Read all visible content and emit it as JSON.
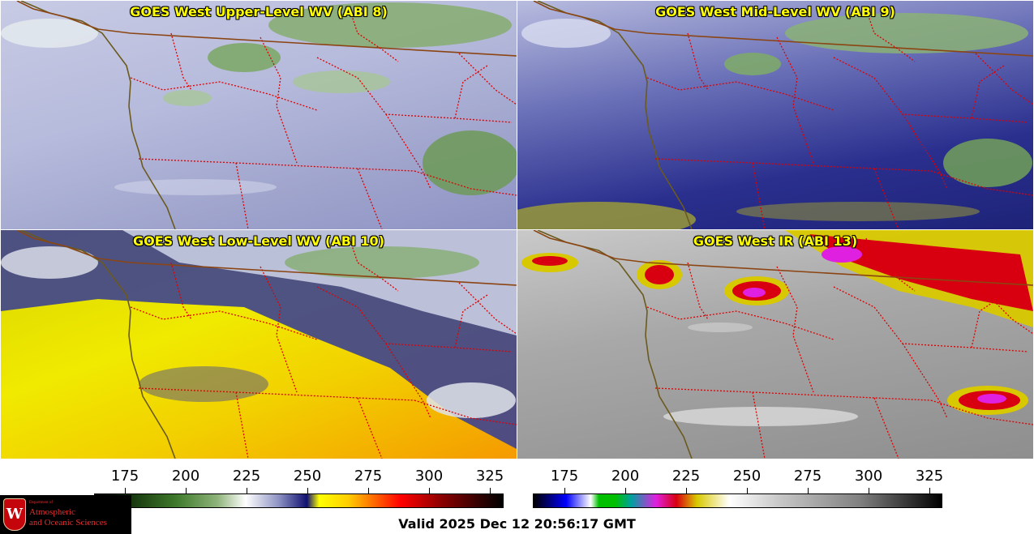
{
  "panels": [
    {
      "id": "ul",
      "title": "GOES West Upper-Level WV (ABI 8)"
    },
    {
      "id": "ml",
      "title": "GOES West Mid-Level WV (ABI 9)"
    },
    {
      "id": "ll",
      "title": "GOES West Low-Level WV (ABI 10)"
    },
    {
      "id": "ir",
      "title": "GOES West IR (ABI 13)"
    }
  ],
  "colorbars": {
    "wv": {
      "ticks": [
        "175",
        "200",
        "225",
        "250",
        "275",
        "300",
        "325"
      ]
    },
    "ir": {
      "ticks": [
        "175",
        "200",
        "225",
        "250",
        "275",
        "300",
        "325"
      ]
    }
  },
  "footer": {
    "valid": "Valid 2025 Dec 12 20:56:17 GMT"
  },
  "logo": {
    "line1": "Department of",
    "line2": "Atmospheric",
    "line3": "and Oceanic Sciences",
    "shield": "W"
  }
}
